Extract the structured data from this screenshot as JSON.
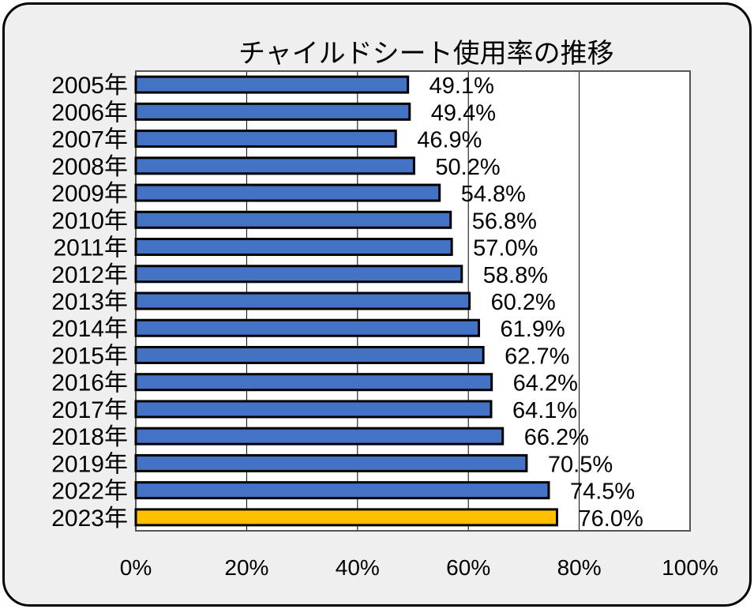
{
  "chart_data": {
    "type": "bar",
    "orientation": "horizontal",
    "title": "チャイルドシート使用率の推移",
    "categories": [
      "2005年",
      "2006年",
      "2007年",
      "2008年",
      "2009年",
      "2010年",
      "2011年",
      "2012年",
      "2013年",
      "2014年",
      "2015年",
      "2016年",
      "2017年",
      "2018年",
      "2019年",
      "2022年",
      "2023年"
    ],
    "values": [
      49.1,
      49.4,
      46.9,
      50.2,
      54.8,
      56.8,
      57.0,
      58.8,
      60.2,
      61.9,
      62.7,
      64.2,
      64.1,
      66.2,
      70.5,
      74.5,
      76.0
    ],
    "value_labels": [
      "49.1%",
      "49.4%",
      "46.9%",
      "50.2%",
      "54.8%",
      "56.8%",
      "57.0%",
      "58.8%",
      "60.2%",
      "61.9%",
      "62.7%",
      "64.2%",
      "64.1%",
      "66.2%",
      "70.5%",
      "74.5%",
      "76.0%"
    ],
    "xlim": [
      0,
      100
    ],
    "x_ticks": [
      "0%",
      "20%",
      "40%",
      "60%",
      "80%",
      "100%"
    ],
    "x_tick_values": [
      0,
      20,
      40,
      60,
      80,
      100
    ],
    "grid": true,
    "colors": {
      "bar": "#4472C4",
      "highlight_bar": "#FFC000",
      "highlight_category": "2023年",
      "outline": "#000000",
      "plot_background": "#ffffff",
      "frame_background": "#efefef",
      "gridline": "#000000"
    }
  }
}
